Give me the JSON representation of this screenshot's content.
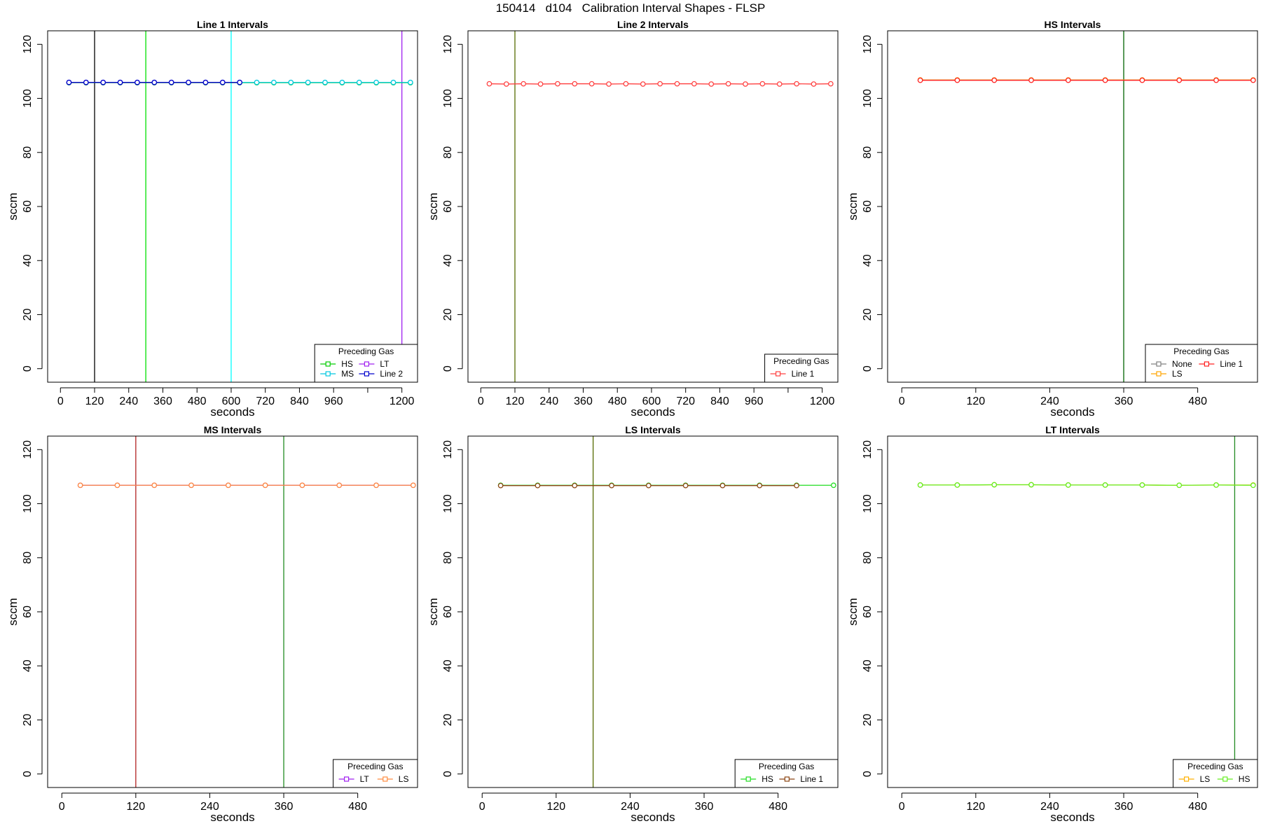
{
  "page_title": "150414   d104   Calibration Interval Shapes - FLSP",
  "chart_data": [
    {
      "type": "line",
      "title": "Line 1 Intervals",
      "xlabel": "seconds",
      "ylabel": "sccm",
      "xlim": [
        -45,
        1255
      ],
      "ylim": [
        -5,
        125
      ],
      "xticks": [
        0,
        120,
        240,
        360,
        480,
        600,
        720,
        840,
        960,
        1080,
        1200
      ],
      "xtick_labels": [
        "0",
        "120",
        "240",
        "360",
        "480",
        "600",
        "720",
        "840",
        "960",
        "",
        "1200"
      ],
      "yticks": [
        0,
        20,
        40,
        60,
        80,
        100,
        120
      ],
      "vlines": [
        {
          "x": 120,
          "color": "#000000"
        },
        {
          "x": 300,
          "color": "#00e000"
        },
        {
          "x": 600,
          "color": "#00ffff"
        },
        {
          "x": 1200,
          "color": "#a020f0"
        }
      ],
      "series": [
        {
          "name": "HS",
          "color": "#00cc00",
          "x": [
            30,
            90,
            150,
            210,
            270,
            330,
            390,
            450,
            510,
            570,
            630,
            690,
            750,
            810,
            870,
            930,
            990,
            1050,
            1110,
            1170,
            1230
          ],
          "values": [
            105.8,
            105.8,
            105.8,
            105.8,
            105.8,
            105.8,
            105.8,
            105.8,
            105.8,
            105.8,
            105.8,
            105.8,
            105.8,
            105.8,
            105.8,
            105.8,
            105.8,
            105.8,
            105.8,
            105.8,
            105.8
          ]
        },
        {
          "name": "MS",
          "color": "#00c8e0",
          "x": [
            30,
            90,
            150,
            210,
            270,
            330,
            390,
            450,
            510,
            570,
            630,
            690,
            750,
            810,
            870,
            930,
            990,
            1050,
            1110,
            1170,
            1230
          ],
          "values": [
            105.9,
            105.9,
            105.9,
            105.9,
            105.9,
            105.9,
            105.9,
            105.9,
            105.9,
            105.9,
            105.9,
            105.9,
            105.9,
            105.9,
            105.9,
            105.9,
            105.9,
            105.9,
            105.9,
            105.9,
            105.9
          ]
        },
        {
          "name": "LT",
          "color": "#a020f0",
          "x": [
            30,
            90,
            150,
            210,
            270,
            330,
            390,
            450,
            510,
            570,
            630
          ],
          "values": [
            105.9,
            105.9,
            105.9,
            105.9,
            105.9,
            105.9,
            105.9,
            105.9,
            105.9,
            105.9,
            105.9
          ]
        },
        {
          "name": "Line 2",
          "color": "#0000cc",
          "x": [
            30,
            90,
            150,
            210,
            270,
            330,
            390,
            450,
            510,
            570,
            630
          ],
          "values": [
            105.9,
            105.9,
            105.9,
            105.9,
            105.9,
            105.9,
            105.9,
            105.9,
            105.9,
            105.9,
            105.9
          ]
        }
      ],
      "legend": {
        "title": "Preceding Gas",
        "placement": "bottom-right",
        "columns": 2
      }
    },
    {
      "type": "line",
      "title": "Line 2 Intervals",
      "xlabel": "seconds",
      "ylabel": "sccm",
      "xlim": [
        -45,
        1255
      ],
      "ylim": [
        -5,
        125
      ],
      "xticks": [
        0,
        120,
        240,
        360,
        480,
        600,
        720,
        840,
        960,
        1080,
        1200
      ],
      "xtick_labels": [
        "0",
        "120",
        "240",
        "360",
        "480",
        "600",
        "720",
        "840",
        "960",
        "",
        "1200"
      ],
      "yticks": [
        0,
        20,
        40,
        60,
        80,
        100,
        120
      ],
      "vlines": [
        {
          "x": 120,
          "color": "#556b00"
        }
      ],
      "series": [
        {
          "name": "Line 1",
          "color": "#ff4040",
          "x": [
            30,
            90,
            150,
            210,
            270,
            330,
            390,
            450,
            510,
            570,
            630,
            690,
            750,
            810,
            870,
            930,
            990,
            1050,
            1110,
            1170,
            1230
          ],
          "values": [
            105.4,
            105.3,
            105.4,
            105.3,
            105.4,
            105.4,
            105.4,
            105.3,
            105.4,
            105.3,
            105.4,
            105.4,
            105.4,
            105.3,
            105.4,
            105.3,
            105.4,
            105.3,
            105.4,
            105.3,
            105.4
          ]
        }
      ],
      "legend": {
        "title": "Preceding Gas",
        "placement": "bottom-right",
        "columns": 1
      }
    },
    {
      "type": "line",
      "title": "HS Intervals",
      "xlabel": "seconds",
      "ylabel": "sccm",
      "xlim": [
        -23,
        577
      ],
      "ylim": [
        -5,
        125
      ],
      "xticks": [
        0,
        120,
        240,
        360,
        480
      ],
      "xtick_labels": [
        "0",
        "120",
        "240",
        "360",
        "480"
      ],
      "yticks": [
        0,
        20,
        40,
        60,
        80,
        100,
        120
      ],
      "vlines": [
        {
          "x": 360,
          "color": "#006400"
        }
      ],
      "series": [
        {
          "name": "None",
          "color": "#808080",
          "x": [
            30,
            90,
            150,
            210,
            270,
            330,
            390,
            450,
            510,
            570
          ],
          "values": [
            106.8,
            106.8,
            106.8,
            106.8,
            106.8,
            106.8,
            106.8,
            106.8,
            106.8,
            106.8
          ]
        },
        {
          "name": "LS",
          "color": "#ffa500",
          "x": [
            30,
            90,
            150,
            210,
            270,
            330,
            390,
            450,
            510,
            570
          ],
          "values": [
            106.8,
            106.8,
            106.8,
            106.8,
            106.8,
            106.8,
            106.8,
            106.8,
            106.8,
            106.8
          ]
        },
        {
          "name": "Line 1",
          "color": "#ff2020",
          "x": [
            30,
            90,
            150,
            210,
            270,
            330,
            390,
            450,
            510,
            570
          ],
          "values": [
            106.7,
            106.7,
            106.7,
            106.7,
            106.7,
            106.7,
            106.7,
            106.7,
            106.7,
            106.7
          ]
        }
      ],
      "legend": {
        "title": "Preceding Gas",
        "placement": "bottom-right",
        "columns": 2
      }
    },
    {
      "type": "line",
      "title": "MS Intervals",
      "xlabel": "seconds",
      "ylabel": "sccm",
      "xlim": [
        -23,
        577
      ],
      "ylim": [
        -5,
        125
      ],
      "xticks": [
        0,
        120,
        240,
        360,
        480
      ],
      "xtick_labels": [
        "0",
        "120",
        "240",
        "360",
        "480"
      ],
      "yticks": [
        0,
        20,
        40,
        60,
        80,
        100,
        120
      ],
      "vlines": [
        {
          "x": 120,
          "color": "#b22222"
        },
        {
          "x": 360,
          "color": "#228b22"
        }
      ],
      "series": [
        {
          "name": "LT",
          "color": "#a020f0",
          "x": [
            30,
            90,
            150,
            210,
            270,
            330,
            390,
            450,
            510,
            570
          ],
          "values": [
            106.8,
            106.8,
            106.8,
            106.8,
            106.8,
            106.8,
            106.8,
            106.8,
            106.8,
            106.8
          ]
        },
        {
          "name": "LS",
          "color": "#ff8c40",
          "x": [
            30,
            90,
            150,
            210,
            270,
            330,
            390,
            450,
            510,
            570
          ],
          "values": [
            106.8,
            106.8,
            106.8,
            106.8,
            106.8,
            106.8,
            106.8,
            106.8,
            106.8,
            106.8
          ]
        }
      ],
      "legend": {
        "title": "Preceding Gas",
        "placement": "bottom-right",
        "columns": 2
      }
    },
    {
      "type": "line",
      "title": "LS Intervals",
      "xlabel": "seconds",
      "ylabel": "sccm",
      "xlim": [
        -23,
        577
      ],
      "ylim": [
        -5,
        125
      ],
      "xticks": [
        0,
        120,
        240,
        360,
        480
      ],
      "xtick_labels": [
        "0",
        "120",
        "240",
        "360",
        "480"
      ],
      "yticks": [
        0,
        20,
        40,
        60,
        80,
        100,
        120
      ],
      "vlines": [
        {
          "x": 180,
          "color": "#556b00"
        }
      ],
      "series": [
        {
          "name": "HS",
          "color": "#22dd22",
          "x": [
            30,
            90,
            150,
            210,
            270,
            330,
            390,
            450,
            510,
            570
          ],
          "values": [
            106.8,
            106.8,
            106.8,
            106.8,
            106.8,
            106.8,
            106.8,
            106.8,
            106.8,
            106.8
          ]
        },
        {
          "name": "Line 1",
          "color": "#8b4513",
          "x": [
            30,
            90,
            150,
            210,
            270,
            330,
            390,
            450,
            510
          ],
          "values": [
            106.7,
            106.7,
            106.7,
            106.7,
            106.7,
            106.7,
            106.7,
            106.7,
            106.7
          ]
        }
      ],
      "legend": {
        "title": "Preceding Gas",
        "placement": "bottom-right",
        "columns": 2
      }
    },
    {
      "type": "line",
      "title": "LT Intervals",
      "xlabel": "seconds",
      "ylabel": "sccm",
      "xlim": [
        -23,
        577
      ],
      "ylim": [
        -5,
        125
      ],
      "xticks": [
        0,
        120,
        240,
        360,
        480
      ],
      "xtick_labels": [
        "0",
        "120",
        "240",
        "360",
        "480"
      ],
      "yticks": [
        0,
        20,
        40,
        60,
        80,
        100,
        120
      ],
      "vlines": [
        {
          "x": 540,
          "color": "#228b22"
        }
      ],
      "series": [
        {
          "name": "LS",
          "color": "#ffb000",
          "x": [
            30,
            90,
            150,
            210,
            270,
            330,
            390,
            450,
            510,
            570
          ],
          "values": [
            106.9,
            106.9,
            107.0,
            107.0,
            106.9,
            106.9,
            106.9,
            106.8,
            106.9,
            106.9
          ]
        },
        {
          "name": "HS",
          "color": "#66ee22",
          "x": [
            30,
            90,
            150,
            210,
            270,
            330,
            390,
            450,
            510,
            570
          ],
          "values": [
            106.9,
            106.9,
            107.0,
            107.0,
            106.9,
            106.9,
            106.9,
            106.8,
            106.9,
            106.8
          ]
        }
      ],
      "legend": {
        "title": "Preceding Gas",
        "placement": "bottom-right",
        "columns": 2
      }
    }
  ]
}
